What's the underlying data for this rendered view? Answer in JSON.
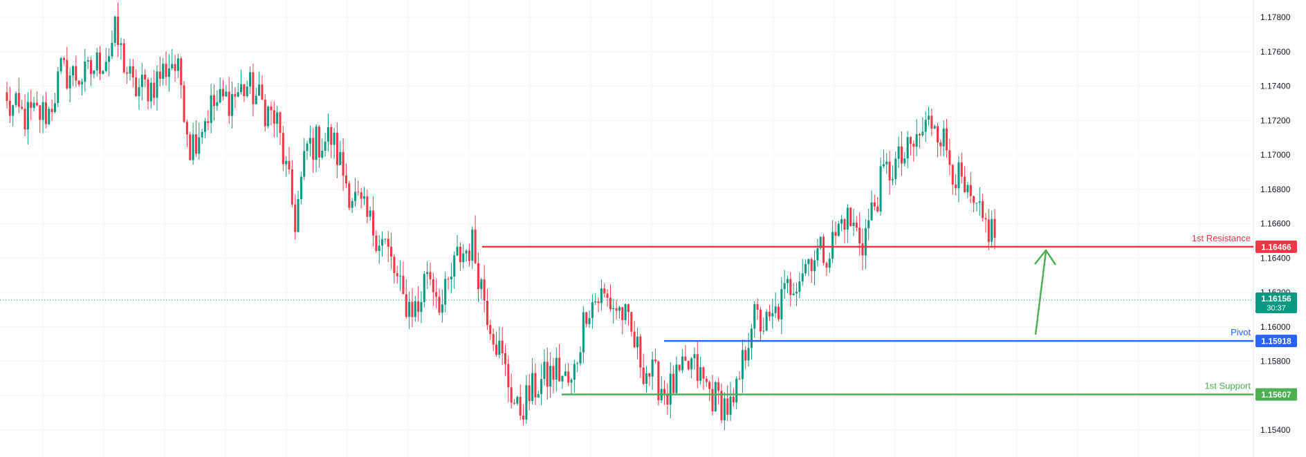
{
  "chart_data": {
    "type": "candlestick",
    "y_axis": {
      "side": "right",
      "min": 1.153,
      "max": 1.1795,
      "ticks": [
        "1.17800",
        "1.17600",
        "1.17400",
        "1.17200",
        "1.17000",
        "1.16800",
        "1.16600",
        "1.16400",
        "1.16200",
        "1.16000",
        "1.15800",
        "1.15600",
        "1.15400"
      ]
    },
    "grid": true,
    "colors": {
      "up": "#089981",
      "down": "#f23645",
      "resistance": "#f23645",
      "pivot": "#2962ff",
      "support": "#4caf50",
      "current": "#089981",
      "arrow": "#4caf50",
      "grid": "#f0f3fa"
    },
    "levels": [
      {
        "key": "resistance",
        "name": "1st Resistance",
        "value": 1.16466,
        "label": "1.16466"
      },
      {
        "key": "pivot",
        "name": "Pivot",
        "value": 1.15918,
        "label": "1.15918"
      },
      {
        "key": "support",
        "name": "1st Support",
        "value": 1.15607,
        "label": "1.15607"
      }
    ],
    "current_price": {
      "value": 1.16156,
      "label": "1.16156",
      "countdown": "30:37"
    },
    "candles": {
      "count": 330,
      "key_closes": [
        [
          0,
          1.1728
        ],
        [
          6,
          1.1722
        ],
        [
          14,
          1.1725
        ],
        [
          18,
          1.1748
        ],
        [
          26,
          1.1745
        ],
        [
          34,
          1.176
        ],
        [
          36,
          1.177
        ],
        [
          42,
          1.1738
        ],
        [
          48,
          1.174
        ],
        [
          55,
          1.1755
        ],
        [
          58,
          1.1742
        ],
        [
          61,
          1.1705
        ],
        [
          68,
          1.1728
        ],
        [
          76,
          1.1735
        ],
        [
          80,
          1.174
        ],
        [
          84,
          1.1732
        ],
        [
          90,
          1.1718
        ],
        [
          96,
          1.1662
        ],
        [
          100,
          1.1705
        ],
        [
          108,
          1.171
        ],
        [
          114,
          1.168
        ],
        [
          120,
          1.1662
        ],
        [
          126,
          1.1648
        ],
        [
          132,
          1.1615
        ],
        [
          137,
          1.161
        ],
        [
          140,
          1.1635
        ],
        [
          145,
          1.1612
        ],
        [
          150,
          1.164
        ],
        [
          155,
          1.1648
        ],
        [
          160,
          1.161
        ],
        [
          165,
          1.158
        ],
        [
          170,
          1.155
        ],
        [
          176,
          1.1565
        ],
        [
          183,
          1.1575
        ],
        [
          188,
          1.1565
        ],
        [
          193,
          1.1612
        ],
        [
          198,
          1.1618
        ],
        [
          205,
          1.1608
        ],
        [
          212,
          1.1577
        ],
        [
          220,
          1.1562
        ],
        [
          228,
          1.1578
        ],
        [
          235,
          1.156
        ],
        [
          242,
          1.1551
        ],
        [
          248,
          1.1605
        ],
        [
          254,
          1.16
        ],
        [
          260,
          1.1622
        ],
        [
          268,
          1.1642
        ],
        [
          274,
          1.1645
        ],
        [
          279,
          1.1665
        ],
        [
          285,
          1.165
        ],
        [
          292,
          1.1688
        ],
        [
          300,
          1.17
        ],
        [
          306,
          1.1716
        ],
        [
          309,
          1.1722
        ],
        [
          314,
          1.1698
        ],
        [
          320,
          1.1672
        ],
        [
          325,
          1.166
        ],
        [
          329,
          1.1655
        ]
      ],
      "note_x_span": "candles 0-329 left to right, price series continues"
    }
  }
}
